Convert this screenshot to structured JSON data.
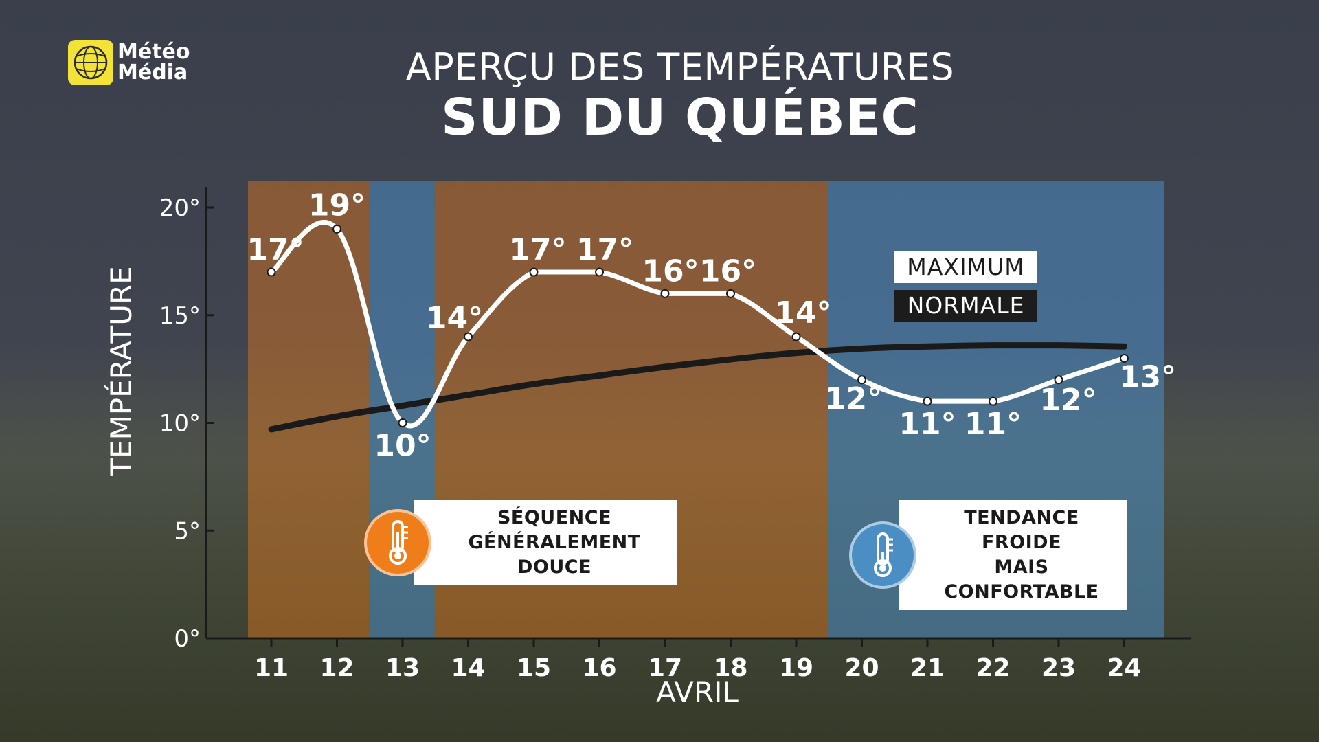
{
  "brand": {
    "line1": "Météo",
    "line2": "Média",
    "icon": "globe-icon",
    "color": "#f3e337"
  },
  "header": {
    "title": "APERÇU DES TEMPÉRATURES",
    "subtitle": "SUD DU QUÉBEC"
  },
  "legend": {
    "maximum": "MAXIMUM",
    "normale": "NORMALE"
  },
  "badges": {
    "warm": {
      "line1": "SÉQUENCE",
      "line2": "GÉNÉRALEMENT DOUCE",
      "icon": "thermometer-icon",
      "color": "#ef7d1a"
    },
    "cold": {
      "line1": "TENDANCE FROIDE",
      "line2": "MAIS CONFORTABLE",
      "icon": "thermometer-icon",
      "color": "#4a8ec4"
    }
  },
  "chart_data": {
    "type": "line",
    "title": "",
    "xlabel": "AVRIL",
    "ylabel": "TEMPÉRATURE",
    "ylim": [
      0,
      20
    ],
    "yticks": [
      0,
      5,
      10,
      15,
      20
    ],
    "ytick_labels": [
      "0°",
      "5°",
      "10°",
      "15°",
      "20°"
    ],
    "x": [
      "11",
      "12",
      "13",
      "14",
      "15",
      "16",
      "17",
      "18",
      "19",
      "20",
      "21",
      "22",
      "23",
      "24"
    ],
    "series": [
      {
        "name": "MAXIMUM",
        "color": "#ffffff",
        "values": [
          17,
          19,
          10,
          14,
          17,
          17,
          16,
          16,
          14,
          12,
          11,
          11,
          12,
          13
        ],
        "labels": [
          "17°",
          "19°",
          "10°",
          "14°",
          "17°",
          "17°",
          "16°",
          "16°",
          "14°",
          "12°",
          "11°",
          "11°",
          "12°",
          "13°"
        ]
      },
      {
        "name": "NORMALE",
        "color": "#1a1a1a",
        "values": [
          9.7,
          10.3,
          10.8,
          11.3,
          11.8,
          12.2,
          12.6,
          12.95,
          13.25,
          13.45,
          13.55,
          13.6,
          13.6,
          13.55
        ]
      }
    ],
    "bands": [
      {
        "from": "11",
        "to": "12",
        "kind": "warm",
        "color": "#ef7d1a"
      },
      {
        "from": "13",
        "to": "13",
        "kind": "cold",
        "color": "#4a8ec4"
      },
      {
        "from": "14",
        "to": "19",
        "kind": "warm",
        "color": "#ef7d1a"
      },
      {
        "from": "20",
        "to": "24",
        "kind": "cold",
        "color": "#4a8ec4"
      }
    ]
  }
}
